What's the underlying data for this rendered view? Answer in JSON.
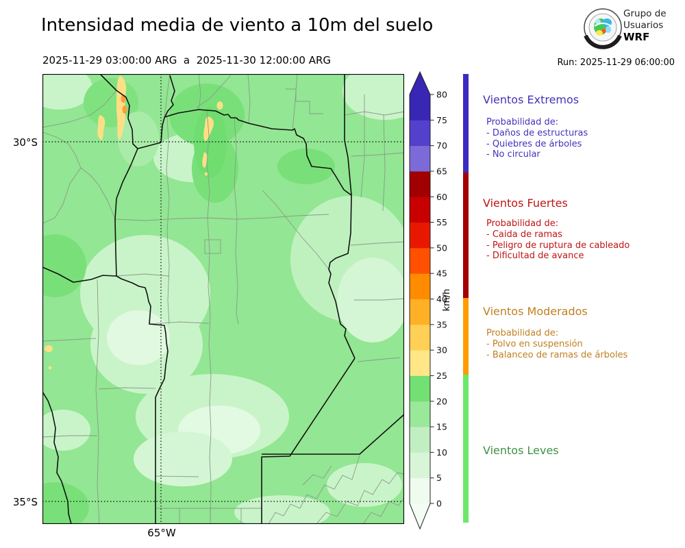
{
  "header": {
    "title": "Intensidad media de viento a 10m del suelo",
    "date_range": "2025-11-29 03:00:00 ARG  a  2025-11-30 12:00:00 ARG",
    "run_label": "Run: 2025-11-29 06:00:00",
    "logo": {
      "line1": "Grupo de",
      "line2": "Usuarios",
      "line3": "WRF",
      "icon": "wrf-globe-emblem-icon"
    }
  },
  "map": {
    "x_axis_label": "65°W",
    "y_axis_labels": [
      "30°S",
      "35°S"
    ],
    "palette": {
      "base_green": "#93e693",
      "light_green": "#c9f4c9",
      "lighter_green": "#e2fae2",
      "dark_green": "#79e079",
      "ridge_yellow": "#ffdf86",
      "ridge_orange": "#ff9d3c",
      "province_border": "#111111",
      "department_border": "#8a9a8a",
      "gridline": "#000000"
    }
  },
  "colorbar": {
    "unit": "km/h",
    "ticks": [
      0,
      5,
      10,
      15,
      20,
      25,
      30,
      35,
      40,
      45,
      50,
      55,
      60,
      65,
      70,
      75,
      80
    ],
    "segment_colors": [
      "#eefbee",
      "#d8f5d8",
      "#c2efc2",
      "#9ae89a",
      "#72e072",
      "#ffe687",
      "#ffd055",
      "#ffb025",
      "#ff8c00",
      "#ff5000",
      "#e81800",
      "#c80000",
      "#a00000",
      "#7c6ad8",
      "#5340cc",
      "#3826b4"
    ],
    "over_color": "#3826b4",
    "under_color": "#f4fdf4"
  },
  "legend": {
    "sections": [
      {
        "title": "Vientos Extremos",
        "text_color": "#4333bb",
        "bar_color": "#3b2bc0",
        "lines": [
          "Probabilidad de:",
          "- Daños de estructuras",
          "- Quiebres de árboles",
          "- No circular"
        ]
      },
      {
        "title": "Vientos Fuertes",
        "text_color": "#c01414",
        "bar_color": "#a50000",
        "lines": [
          "Probabilidad de:",
          "- Caida de ramas",
          "- Peligro de ruptura de cableado",
          "- Dificultad de avance"
        ]
      },
      {
        "title": "Vientos Moderados",
        "text_color": "#c07f1f",
        "bar_color": "#ff9c00",
        "lines": [
          "Probabilidad de:",
          "- Polvo en suspensión",
          "- Balanceo de ramas de árboles"
        ]
      },
      {
        "title": "Vientos Leves",
        "text_color": "#3f9146",
        "bar_color": "#6ce86c",
        "lines": []
      }
    ]
  }
}
